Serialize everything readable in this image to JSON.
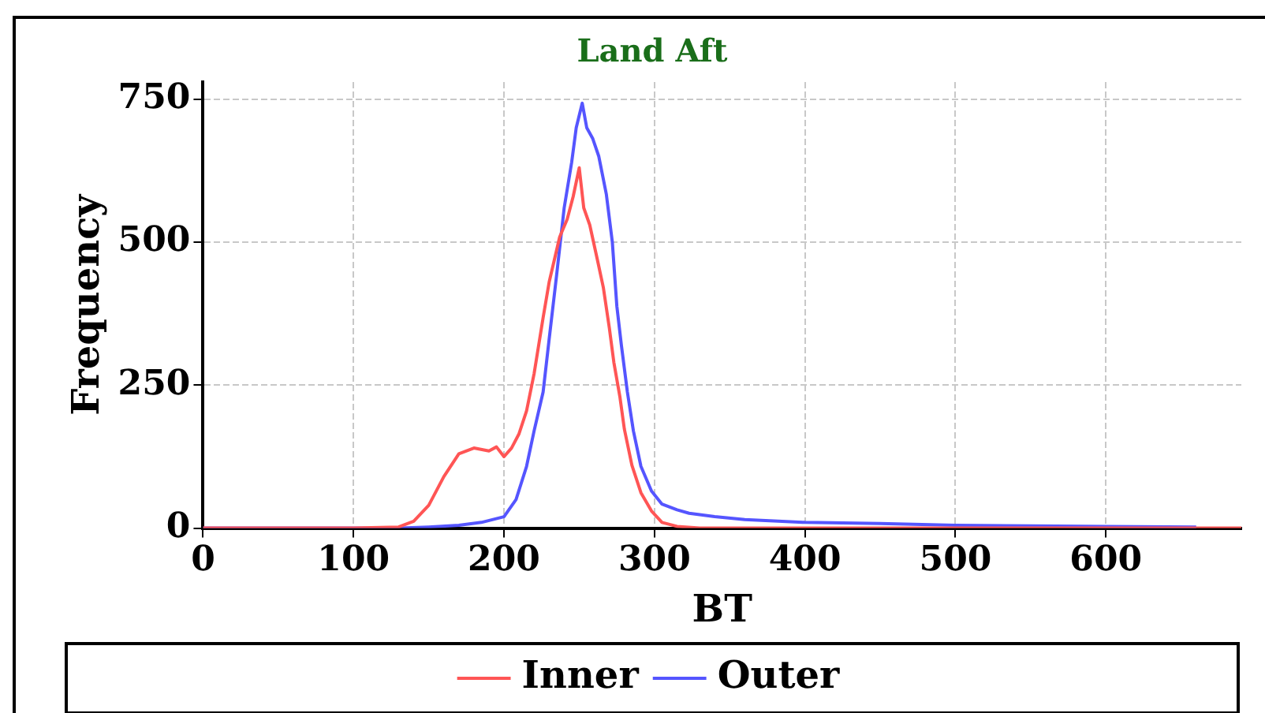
{
  "chart_data": {
    "type": "line",
    "title": "Land Aft",
    "xlabel": "BT",
    "ylabel": "Frequency",
    "xlim": [
      0,
      690
    ],
    "ylim": [
      0,
      780
    ],
    "xticks": [
      0,
      100,
      200,
      300,
      400,
      500,
      600
    ],
    "yticks": [
      0,
      250,
      500,
      750
    ],
    "grid": true,
    "legend": "bottom",
    "series": [
      {
        "name": "Inner",
        "color": "#ff5555",
        "x": [
          0,
          100,
          130,
          140,
          150,
          160,
          170,
          180,
          190,
          195,
          200,
          205,
          210,
          215,
          220,
          226,
          230,
          237,
          242,
          246,
          250,
          253,
          257,
          262,
          266,
          270,
          273,
          277,
          280,
          285,
          291,
          298,
          305,
          315,
          330,
          690
        ],
        "values": [
          0,
          0,
          2,
          12,
          40,
          90,
          130,
          140,
          135,
          142,
          125,
          140,
          165,
          205,
          270,
          368,
          430,
          509,
          540,
          580,
          630,
          560,
          530,
          470,
          421,
          350,
          290,
          230,
          173,
          110,
          62,
          30,
          10,
          3,
          0,
          0
        ]
      },
      {
        "name": "Outer",
        "color": "#5555ff",
        "x": [
          0,
          130,
          150,
          170,
          185,
          200,
          208,
          215,
          220,
          226,
          230,
          235,
          240,
          245,
          248,
          252,
          255,
          259,
          263,
          268,
          272,
          275,
          278,
          282,
          286,
          291,
          298,
          305,
          315,
          323,
          340,
          360,
          400,
          450,
          500,
          550,
          600,
          660
        ],
        "values": [
          0,
          0,
          2,
          5,
          10,
          20,
          50,
          108,
          170,
          238,
          330,
          443,
          560,
          640,
          700,
          743,
          700,
          681,
          650,
          584,
          500,
          388,
          320,
          238,
          170,
          108,
          65,
          42,
          32,
          26,
          20,
          15,
          10,
          8,
          5,
          4,
          3,
          2
        ]
      }
    ]
  }
}
